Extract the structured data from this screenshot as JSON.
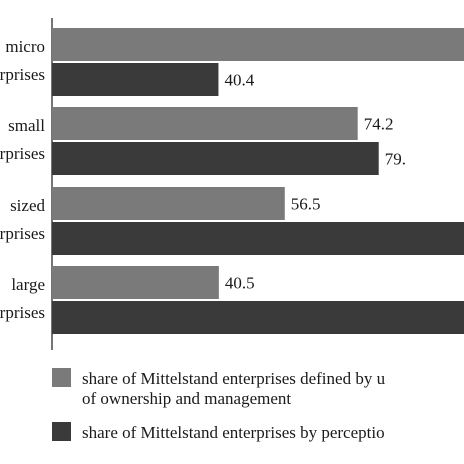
{
  "chart_data": {
    "type": "bar",
    "orientation": "horizontal",
    "categories": [
      {
        "line1": "micro",
        "line2": "rprises"
      },
      {
        "line1": "small",
        "line2": "rprises"
      },
      {
        "line1": "sized",
        "line2": "rprises"
      },
      {
        "line1": "large",
        "line2": "rprises"
      }
    ],
    "series": [
      {
        "legend_lines": [
          "share of Mittelstand enterprises defined by u",
          "of ownership and management"
        ],
        "color": "#7a7a7a",
        "values": [
          100,
          74.2,
          56.5,
          40.5
        ],
        "labels": [
          "",
          "74.2",
          "56.5",
          "40.5"
        ]
      },
      {
        "legend_lines": [
          "share of Mittelstand enterprises by perceptio"
        ],
        "color": "#3a3a3a",
        "values": [
          40.4,
          79.3,
          100,
          100
        ],
        "labels": [
          "40.4",
          "79.",
          "",
          ""
        ]
      }
    ],
    "xlim": [
      0,
      100
    ],
    "grid": false,
    "legend_position": "bottom"
  }
}
